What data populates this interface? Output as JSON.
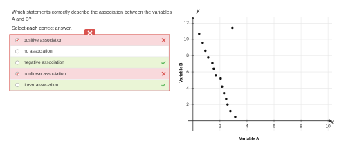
{
  "question": "Which statements correctly describe the association between the variables A and B?",
  "instruction": {
    "before": "Select",
    "emphasis": "each",
    "after": "correct answer."
  },
  "options": [
    {
      "label": "positive association",
      "selected": true,
      "state": "incorrect"
    },
    {
      "label": "no association",
      "selected": false,
      "state": "none"
    },
    {
      "label": "negative association",
      "selected": false,
      "state": "correct"
    },
    {
      "label": "nonlinear association",
      "selected": true,
      "state": "incorrect"
    },
    {
      "label": "linear association",
      "selected": false,
      "state": "correct"
    }
  ],
  "chart_data": {
    "type": "scatter",
    "x_label": "Variable A",
    "y_label": "Variable B",
    "x_axis_letter": "x",
    "y_axis_letter": "y",
    "series": [
      {
        "name": "points",
        "color": "#111111",
        "x": [
          0.46,
          0.72,
          0.92,
          1.13,
          1.44,
          1.54,
          1.69,
          2.05,
          2.15,
          2.3,
          2.46,
          2.56,
          2.77,
          3.13,
          2.92
        ],
        "values": [
          10.7,
          9.6,
          8.6,
          7.8,
          7.1,
          6.4,
          5.6,
          5.2,
          4.2,
          3.4,
          2.7,
          2.0,
          1.2,
          0.5,
          11.4
        ]
      }
    ],
    "xlim": [
      -0.4,
      10.3
    ],
    "ylim": [
      -1.3,
      12.8
    ],
    "xticks": [
      2,
      4,
      6,
      8,
      10
    ],
    "yticks": [
      2,
      4,
      6,
      8,
      10,
      12
    ],
    "grid": true
  }
}
